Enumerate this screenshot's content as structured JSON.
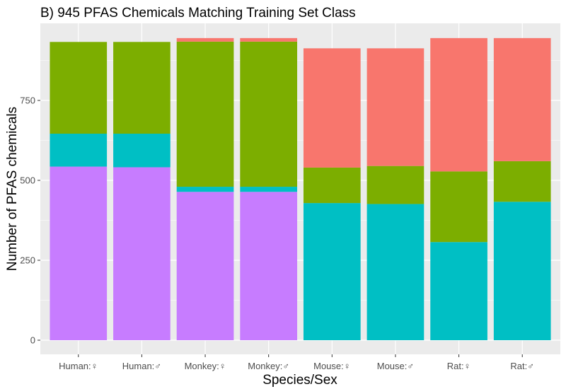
{
  "chart_data": {
    "type": "bar",
    "stacked": true,
    "title": "B) 945 PFAS Chemicals Matching Training Set Class",
    "xlabel": "Species/Sex",
    "ylabel": "Number of PFAS chemicals",
    "ylim": [
      0,
      945
    ],
    "yticks": [
      0,
      250,
      500,
      750
    ],
    "grid": true,
    "legend": "none",
    "categories": [
      "Human:♀",
      "Human:♂",
      "Monkey:♀",
      "Monkey:♂",
      "Mouse:♀",
      "Mouse:♂",
      "Rat:♀",
      "Rat:♂"
    ],
    "series": [
      {
        "color": "#C77CFF",
        "values": [
          543,
          541,
          464,
          464,
          0,
          0,
          0,
          0
        ]
      },
      {
        "color": "#00BFC4",
        "values": [
          103,
          105,
          16,
          16,
          429,
          426,
          307,
          433
        ]
      },
      {
        "color": "#7CAE00",
        "values": [
          287,
          287,
          454,
          454,
          111,
          119,
          221,
          127
        ]
      },
      {
        "color": "#F8766D",
        "values": [
          0,
          0,
          11,
          11,
          373,
          368,
          417,
          385
        ]
      }
    ]
  }
}
